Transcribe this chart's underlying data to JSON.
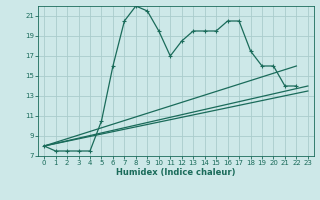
{
  "xlabel": "Humidex (Indice chaleur)",
  "bg_color": "#cde8e8",
  "grid_color": "#aacccc",
  "line_color": "#1a6b5a",
  "xlim": [
    -0.5,
    23.5
  ],
  "ylim": [
    7,
    22
  ],
  "yticks": [
    7,
    9,
    11,
    13,
    15,
    17,
    19,
    21
  ],
  "xticks": [
    0,
    1,
    2,
    3,
    4,
    5,
    6,
    7,
    8,
    9,
    10,
    11,
    12,
    13,
    14,
    15,
    16,
    17,
    18,
    19,
    20,
    21,
    22,
    23
  ],
  "series1_x": [
    0,
    1,
    2,
    3,
    4,
    5,
    6,
    7,
    8,
    9,
    10,
    11,
    12,
    13,
    14,
    15,
    16,
    17,
    18,
    19,
    20,
    21,
    22
  ],
  "series1_y": [
    8.0,
    7.5,
    7.5,
    7.5,
    7.5,
    10.5,
    16.0,
    20.5,
    22.0,
    21.5,
    19.5,
    17.0,
    18.5,
    19.5,
    19.5,
    19.5,
    20.5,
    20.5,
    17.5,
    16.0,
    16.0,
    14.0,
    14.0
  ],
  "series2_x": [
    0,
    22
  ],
  "series2_y": [
    8.0,
    16.0
  ],
  "series3_x": [
    0,
    23
  ],
  "series3_y": [
    8.0,
    14.0
  ],
  "series4_x": [
    0,
    23
  ],
  "series4_y": [
    8.0,
    13.5
  ]
}
